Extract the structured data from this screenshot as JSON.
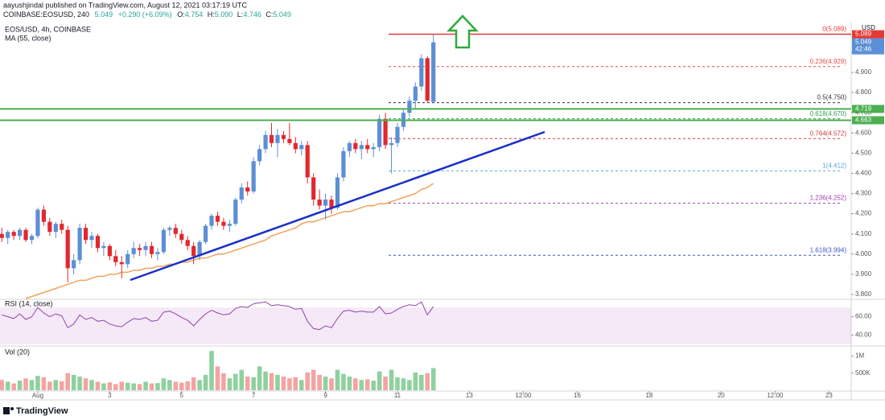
{
  "header": {
    "author": "aayushjindal published on TradingView.com, August 12, 2021 03:17:19 UTC",
    "symbol": "COINBASE:EOSUSD, 240",
    "last": "5.049",
    "change": "+0.290 (+6.09%)",
    "ohlc": [
      {
        "key": "O:",
        "value": "4.754"
      },
      {
        "key": "H:",
        "value": "5.090"
      },
      {
        "key": "L:",
        "value": "4.746"
      },
      {
        "key": "C:",
        "value": "5.049"
      }
    ]
  },
  "footer": {
    "brand": "TradingView"
  },
  "chart_data": {
    "type": "candlestick",
    "title": "EOS/USD, 4h, COINBASE",
    "currency": "USD",
    "open": [
      4.1,
      4.08,
      4.11,
      4.09,
      4.12,
      4.07,
      4.09,
      4.22,
      4.16,
      4.11,
      4.15,
      4.12,
      3.93,
      3.97,
      4.13,
      4.07,
      4.09,
      4.03,
      4.04,
      3.99,
      3.96,
      3.95,
      4.0,
      4.03,
      4.02,
      4.04,
      4.0,
      4.01,
      4.12,
      4.13,
      4.1,
      4.07,
      4.04,
      3.99,
      4.06,
      4.14,
      4.19,
      4.16,
      4.14,
      4.15,
      4.27,
      4.33,
      4.31,
      4.46,
      4.52,
      4.59,
      4.55,
      4.59,
      4.57,
      4.55,
      4.52,
      4.54,
      4.38,
      4.27,
      4.24,
      4.27,
      4.23,
      4.38,
      4.51,
      4.55,
      4.52,
      4.54,
      4.52,
      4.53,
      4.67,
      4.54,
      4.55,
      4.63,
      4.7,
      4.76,
      4.83,
      4.97,
      4.754
    ],
    "high": [
      4.13,
      4.12,
      4.12,
      4.13,
      4.13,
      4.1,
      4.23,
      4.24,
      4.18,
      4.16,
      4.17,
      4.14,
      4.0,
      4.15,
      4.15,
      4.11,
      4.1,
      4.06,
      4.05,
      4.02,
      3.99,
      4.02,
      4.06,
      4.05,
      4.06,
      4.06,
      4.03,
      4.13,
      4.14,
      4.15,
      4.12,
      4.09,
      4.06,
      4.07,
      4.15,
      4.2,
      4.21,
      4.18,
      4.17,
      4.28,
      4.35,
      4.36,
      4.48,
      4.54,
      4.61,
      4.65,
      4.62,
      4.61,
      4.65,
      4.58,
      4.56,
      4.56,
      4.4,
      4.32,
      4.3,
      4.29,
      4.4,
      4.53,
      4.56,
      4.57,
      4.56,
      4.57,
      4.55,
      4.69,
      4.7,
      4.58,
      4.65,
      4.72,
      4.78,
      4.85,
      4.99,
      4.98,
      5.09
    ],
    "low": [
      4.06,
      4.05,
      4.07,
      4.07,
      4.06,
      4.05,
      4.08,
      4.14,
      4.09,
      4.08,
      4.1,
      3.86,
      3.9,
      3.95,
      4.05,
      4.03,
      4.01,
      3.99,
      3.97,
      3.94,
      3.88,
      3.93,
      3.98,
      3.99,
      3.99,
      3.98,
      3.97,
      4.0,
      4.09,
      4.08,
      4.05,
      4.02,
      3.95,
      3.97,
      4.05,
      4.12,
      4.14,
      4.12,
      4.11,
      4.14,
      4.25,
      4.29,
      4.3,
      4.44,
      4.5,
      4.53,
      4.48,
      4.55,
      4.54,
      4.5,
      4.49,
      4.35,
      4.24,
      4.22,
      4.17,
      4.2,
      4.22,
      4.36,
      4.48,
      4.5,
      4.47,
      4.5,
      4.48,
      4.51,
      4.52,
      4.4,
      4.53,
      4.61,
      4.68,
      4.72,
      4.81,
      4.75,
      4.746
    ],
    "close": [
      4.08,
      4.11,
      4.09,
      4.12,
      4.07,
      4.09,
      4.22,
      4.16,
      4.11,
      4.15,
      4.12,
      3.93,
      3.97,
      4.13,
      4.07,
      4.09,
      4.03,
      4.04,
      3.99,
      3.96,
      3.95,
      4.0,
      4.03,
      4.02,
      4.04,
      4.0,
      4.01,
      4.12,
      4.13,
      4.1,
      4.07,
      4.04,
      3.99,
      4.06,
      4.14,
      4.19,
      4.16,
      4.14,
      4.15,
      4.27,
      4.33,
      4.31,
      4.46,
      4.52,
      4.59,
      4.55,
      4.59,
      4.57,
      4.55,
      4.52,
      4.54,
      4.38,
      4.27,
      4.24,
      4.27,
      4.23,
      4.38,
      4.51,
      4.55,
      4.52,
      4.54,
      4.52,
      4.53,
      4.67,
      4.54,
      4.55,
      4.63,
      4.7,
      4.76,
      4.83,
      4.97,
      4.76,
      5.049
    ],
    "up_color": "#5b8fd6",
    "down_color": "#e0282e",
    "xlim": [
      -0.3,
      141.7
    ],
    "xticks": [
      {
        "value": 6,
        "label": "Aug"
      },
      3,
      5,
      7,
      9,
      11,
      13,
      {
        "value": 87,
        "label": "12:00"
      },
      16,
      18,
      20,
      {
        "value": 129,
        "label": "12:00"
      },
      23
    ],
    "xtick_values": [
      6,
      18,
      30,
      42,
      54,
      66,
      78,
      87,
      96,
      108,
      120,
      129,
      138
    ],
    "ylim": [
      3.784,
      5.139
    ],
    "yticks": [
      {
        "value": 3.8,
        "label": "3.800"
      },
      {
        "value": 3.9,
        "label": "3.900"
      },
      {
        "value": 4.0,
        "label": "4.000"
      },
      {
        "value": 4.1,
        "label": "4.100"
      },
      {
        "value": 4.2,
        "label": "4.200"
      },
      {
        "value": 4.3,
        "label": "4.300"
      },
      {
        "value": 4.4,
        "label": "4.400"
      },
      {
        "value": 4.5,
        "label": "4.500"
      },
      {
        "value": 4.6,
        "label": "4.600"
      },
      {
        "value": 4.7,
        "label": "4.700"
      },
      {
        "value": 4.8,
        "label": "4.800"
      },
      {
        "value": 4.9,
        "label": "4.900"
      },
      {
        "value": 5.0,
        "label": "5.000"
      }
    ],
    "ma": {
      "name": "MA (55, close)",
      "color": "#f0a35e",
      "values": [
        null,
        null,
        null,
        null,
        3.78,
        3.79,
        3.8,
        3.81,
        3.82,
        3.83,
        3.84,
        3.85,
        3.86,
        3.87,
        3.87,
        3.88,
        3.89,
        3.89,
        3.9,
        3.9,
        3.91,
        3.91,
        3.92,
        3.92,
        3.93,
        3.93,
        3.94,
        3.94,
        3.95,
        3.95,
        3.96,
        3.96,
        3.97,
        3.98,
        3.98,
        3.99,
        4.0,
        4.0,
        4.01,
        4.02,
        4.03,
        4.04,
        4.05,
        4.06,
        4.07,
        4.09,
        4.1,
        4.11,
        4.12,
        4.13,
        4.15,
        4.16,
        4.16,
        4.17,
        4.18,
        4.19,
        4.2,
        4.21,
        4.21,
        4.22,
        4.23,
        4.24,
        4.24,
        4.25,
        4.25,
        4.26,
        4.27,
        4.28,
        4.29,
        4.3,
        4.32,
        4.33,
        4.35
      ]
    },
    "fib": [
      {
        "label": "0(5.089)",
        "value": 5.089,
        "color": "#e53935",
        "style": "solid"
      },
      {
        "label": "0.236(4.929)",
        "value": 4.929,
        "color": "#e0504a",
        "style": "dashed"
      },
      {
        "label": "0.5(4.750)",
        "value": 4.75,
        "color": "#333333",
        "style": "dashed"
      },
      {
        "label": "0.618(4.670)",
        "value": 4.67,
        "color": "#2e9e4a",
        "style": "dashed"
      },
      {
        "label": "0.764(4.572)",
        "value": 4.572,
        "color": "#d03b3b",
        "style": "dashed"
      },
      {
        "label": "1(4.412)",
        "value": 4.412,
        "color": "#5aa6d6",
        "style": "dashed"
      },
      {
        "label": "1.236(4.252)",
        "value": 4.252,
        "color": "#a040b0",
        "style": "dashed"
      },
      {
        "label": "1.618(3.994)",
        "value": 3.994,
        "color": "#3a57c4",
        "style": "dashed"
      }
    ],
    "price_markers": [
      {
        "value": 4.719,
        "label": "4.719",
        "color": "#4caf50",
        "line": true
      },
      {
        "value": 4.663,
        "label": "4.663",
        "color": "#4caf50",
        "line": true
      },
      {
        "value": 5.049,
        "label": "5.049",
        "sub": "42:46",
        "color": "#5b8fd6",
        "line": false
      },
      {
        "value": 5.089,
        "label": "5.089",
        "color": "#e53935",
        "line": false
      }
    ],
    "rsi": {
      "name": "RSI (14, close)",
      "color": "#8e44ad",
      "ylim": [
        29,
        78
      ],
      "band": [
        30,
        70
      ],
      "yticks": [
        {
          "value": 60,
          "label": "60.00"
        },
        {
          "value": 40,
          "label": "40.00"
        }
      ],
      "values": [
        62,
        60,
        58,
        63,
        57,
        60,
        70,
        64,
        60,
        63,
        61,
        48,
        52,
        62,
        57,
        59,
        55,
        56,
        52,
        50,
        49,
        54,
        58,
        57,
        59,
        55,
        56,
        65,
        66,
        63,
        59,
        56,
        50,
        57,
        63,
        67,
        64,
        62,
        63,
        69,
        71,
        70,
        74,
        75,
        76,
        72,
        73,
        72,
        71,
        68,
        69,
        55,
        47,
        46,
        50,
        48,
        58,
        66,
        67,
        65,
        66,
        65,
        65,
        71,
        63,
        64,
        68,
        71,
        73,
        72,
        76,
        62,
        71
      ]
    },
    "volume": {
      "name": "Vol (20)",
      "ylim": [
        0,
        1250000
      ],
      "up_color": "#8fd19e",
      "down_color": "#f4a3a3",
      "yticks": [
        {
          "value": 1000000,
          "label": "1M"
        },
        {
          "value": 500000,
          "label": "500K"
        }
      ],
      "values": [
        300000,
        250000,
        200000,
        280000,
        350000,
        300000,
        420000,
        380000,
        250000,
        300000,
        260000,
        500000,
        450000,
        400000,
        350000,
        300000,
        250000,
        200000,
        230000,
        180000,
        250000,
        220000,
        200000,
        180000,
        250000,
        200000,
        210000,
        350000,
        300000,
        250000,
        220000,
        260000,
        380000,
        300000,
        450000,
        1150000,
        700000,
        500000,
        350000,
        480000,
        600000,
        400000,
        380000,
        700000,
        550000,
        500000,
        450000,
        400000,
        350000,
        380000,
        300000,
        520000,
        600000,
        450000,
        400000,
        350000,
        600000,
        480000,
        400000,
        350000,
        300000,
        320000,
        280000,
        550000,
        400000,
        600000,
        380000,
        350000,
        300000,
        520000,
        450000,
        500000,
        650000
      ]
    }
  }
}
